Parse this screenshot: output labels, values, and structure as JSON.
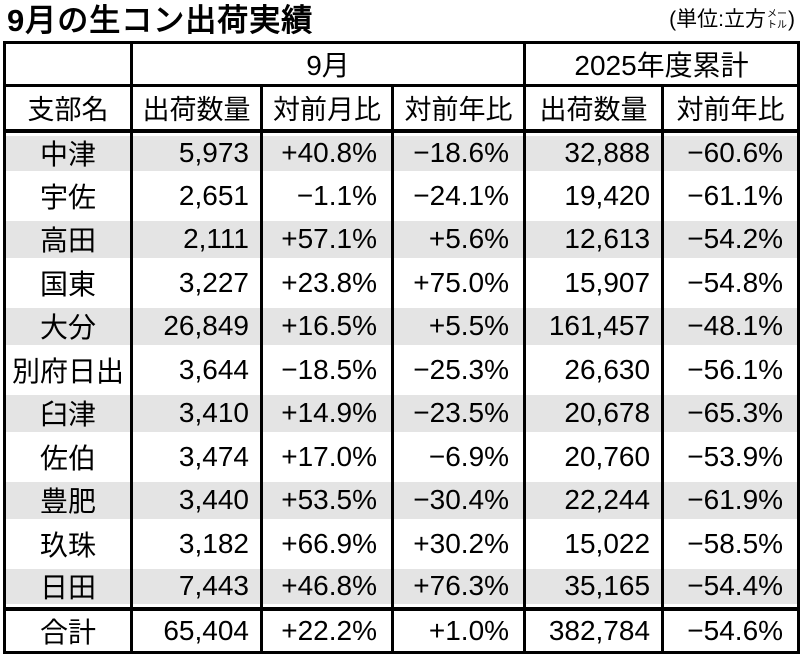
{
  "title": "9月の生コン出荷実績",
  "unit": {
    "prefix": "(単位:立方",
    "meter_top": "メー",
    "meter_bottom": "トル",
    "suffix": ")"
  },
  "table": {
    "group_headers": [
      "9月",
      "2025年度累計"
    ],
    "columns": [
      "支部名",
      "出荷数量",
      "対前月比",
      "対前年比",
      "出荷数量",
      "対前年比"
    ],
    "rows": [
      {
        "name": "中津",
        "cells": [
          "5,973",
          "+40.8%",
          "−18.6%",
          "32,888",
          "−60.6%"
        ]
      },
      {
        "name": "宇佐",
        "cells": [
          "2,651",
          "−1.1%",
          "−24.1%",
          "19,420",
          "−61.1%"
        ]
      },
      {
        "name": "高田",
        "cells": [
          "2,111",
          "+57.1%",
          "+5.6%",
          "12,613",
          "−54.2%"
        ]
      },
      {
        "name": "国東",
        "cells": [
          "3,227",
          "+23.8%",
          "+75.0%",
          "15,907",
          "−54.8%"
        ]
      },
      {
        "name": "大分",
        "cells": [
          "26,849",
          "+16.5%",
          "+5.5%",
          "161,457",
          "−48.1%"
        ]
      },
      {
        "name": "別府日出",
        "cells": [
          "3,644",
          "−18.5%",
          "−25.3%",
          "26,630",
          "−56.1%"
        ]
      },
      {
        "name": "臼津",
        "cells": [
          "3,410",
          "+14.9%",
          "−23.5%",
          "20,678",
          "−65.3%"
        ]
      },
      {
        "name": "佐伯",
        "cells": [
          "3,474",
          "+17.0%",
          "−6.9%",
          "20,760",
          "−53.9%"
        ]
      },
      {
        "name": "豊肥",
        "cells": [
          "3,440",
          "+53.5%",
          "−30.4%",
          "22,244",
          "−61.9%"
        ]
      },
      {
        "name": "玖珠",
        "cells": [
          "3,182",
          "+66.9%",
          "+30.2%",
          "15,022",
          "−58.5%"
        ]
      },
      {
        "name": "日田",
        "cells": [
          "7,443",
          "+46.8%",
          "+76.3%",
          "35,165",
          "−54.4%"
        ]
      }
    ],
    "total_row": {
      "name": "合計",
      "cells": [
        "65,404",
        "+22.2%",
        "+1.0%",
        "382,784",
        "−54.6%"
      ]
    }
  },
  "colors": {
    "shaded_row": "#e4e4e4",
    "border": "#000000",
    "text": "#000000",
    "background": "#ffffff"
  }
}
